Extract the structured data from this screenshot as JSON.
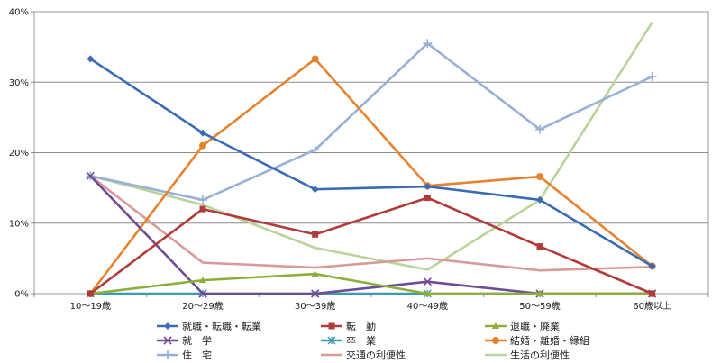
{
  "chart_data": {
    "type": "line",
    "categories": [
      "10～19歳",
      "20～29歳",
      "30～39歳",
      "40～49歳",
      "50～59歳",
      "60歳以上"
    ],
    "y_tick_labels": [
      "0%",
      "10%",
      "20%",
      "30%",
      "40%"
    ],
    "ylim": [
      0,
      40
    ],
    "grid": true,
    "legend_position": "bottom",
    "series": [
      {
        "name": "就職・転職・転業",
        "color": "#3A6BB3",
        "marker": "diamond",
        "values": [
          33.3,
          22.8,
          14.8,
          15.2,
          13.3,
          3.9
        ]
      },
      {
        "name": "転　勤",
        "color": "#B33A3A",
        "marker": "square",
        "values": [
          0,
          12.0,
          8.4,
          13.6,
          6.7,
          0
        ]
      },
      {
        "name": "退職・廃業",
        "color": "#8CAF3C",
        "marker": "triangle",
        "values": [
          0,
          1.9,
          2.8,
          0,
          0,
          0
        ]
      },
      {
        "name": "就　学",
        "color": "#6E4C96",
        "marker": "x",
        "values": [
          16.7,
          0,
          0,
          1.7,
          0,
          0
        ]
      },
      {
        "name": "卒　業",
        "color": "#3A9CB3",
        "marker": "asterisk",
        "values": [
          0,
          0,
          0,
          0,
          0,
          0
        ]
      },
      {
        "name": "結婚・離婚・縁組",
        "color": "#E8822E",
        "marker": "circle",
        "values": [
          0,
          21.0,
          33.3,
          15.3,
          16.6,
          3.9
        ]
      },
      {
        "name": "住　宅",
        "color": "#98B0D6",
        "marker": "plus",
        "values": [
          16.7,
          13.3,
          20.4,
          35.5,
          23.3,
          30.8
        ]
      },
      {
        "name": "交通の利便性",
        "color": "#D99A9A",
        "marker": "none",
        "values": [
          16.7,
          4.4,
          3.7,
          5.0,
          3.3,
          3.8
        ]
      },
      {
        "name": "生活の利便性",
        "color": "#B9D39A",
        "marker": "none",
        "values": [
          16.7,
          12.6,
          6.5,
          3.4,
          13.3,
          38.5
        ]
      }
    ]
  }
}
